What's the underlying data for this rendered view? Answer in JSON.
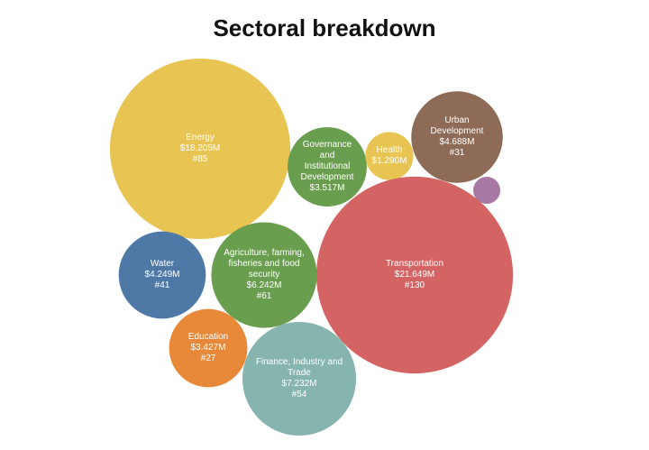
{
  "chart_data": {
    "type": "packed-bubble",
    "title": "Sectoral breakdown",
    "categories": [
      "Energy",
      "Governance and Institutional Development",
      "Health",
      "Urban Development",
      null,
      "Transportation",
      "Water",
      "Agriculture, farming, fisheries and food security",
      "Education",
      "Finance, Industry and Trade"
    ],
    "values": [
      18.205,
      3.517,
      1.29,
      4.688,
      0.41,
      21.649,
      4.249,
      6.242,
      3.427,
      7.232
    ],
    "value_labels": [
      "$18.205M",
      "$3.517M",
      "$1.290M",
      "$4.688M",
      null,
      "$21.649M",
      "$4.249M",
      "$6.242M",
      "$3.427M",
      "$7.232M"
    ],
    "counts": [
      85,
      null,
      null,
      31,
      null,
      130,
      41,
      61,
      27,
      54
    ],
    "count_labels": [
      "#85",
      null,
      null,
      "#31",
      null,
      "#130",
      "#41",
      "#61",
      "#27",
      "#54"
    ],
    "colors": [
      "#e8c452",
      "#6a9e4f",
      "#e8c452",
      "#8e6b57",
      "#a878a5",
      "#d46463",
      "#4e79a7",
      "#6a9e4f",
      "#e8893a",
      "#86b5b0"
    ]
  }
}
